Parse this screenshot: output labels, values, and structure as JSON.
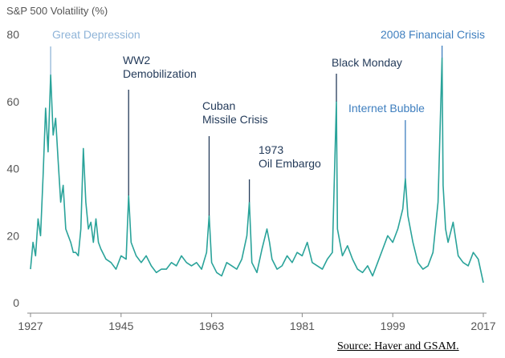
{
  "chart_data": {
    "type": "line",
    "ylabel": "S&P 500 Volatility (%)",
    "xlim": [
      1927,
      2017
    ],
    "ylim": [
      0,
      80
    ],
    "x_ticks": [
      "1927",
      "1945",
      "1963",
      "1981",
      "1999",
      "2017"
    ],
    "y_ticks": [
      "0",
      "20",
      "40",
      "60",
      "80"
    ],
    "grid": false,
    "line_color": "#2AA39A",
    "series": [
      {
        "x": [
          1927,
          1927.5,
          1928,
          1928.5,
          1929,
          1929.5,
          1930,
          1930.5,
          1931,
          1931.5,
          1932,
          1932.5,
          1933,
          1933.5,
          1934,
          1934.5,
          1935,
          1935.5,
          1936,
          1936.5,
          1937,
          1937.5,
          1938,
          1938.5,
          1939,
          1939.5,
          1940,
          1940.5,
          1941,
          1942,
          1943,
          1944,
          1945,
          1946,
          1946.5,
          1947,
          1948,
          1949,
          1950,
          1951,
          1952,
          1953,
          1954,
          1955,
          1956,
          1957,
          1958,
          1959,
          1960,
          1961,
          1962,
          1962.5,
          1963,
          1964,
          1965,
          1966,
          1967,
          1968,
          1969,
          1970,
          1970.5,
          1971,
          1972,
          1973,
          1974,
          1974.5,
          1975,
          1976,
          1977,
          1978,
          1979,
          1980,
          1981,
          1982,
          1983,
          1984,
          1985,
          1986,
          1987,
          1987.8,
          1988,
          1989,
          1990,
          1991,
          1992,
          1993,
          1994,
          1995,
          1996,
          1997,
          1998,
          1999,
          2000,
          2001,
          2001.5,
          2002,
          2003,
          2004,
          2005,
          2006,
          2007,
          2008,
          2008.8,
          2009,
          2009.5,
          2010,
          2011,
          2012,
          2013,
          2014,
          2015,
          2016,
          2017
        ],
        "values": [
          10,
          18,
          14,
          25,
          20,
          38,
          58,
          45,
          68,
          50,
          55,
          42,
          30,
          35,
          22,
          20,
          18,
          15,
          15,
          14,
          22,
          46,
          30,
          22,
          24,
          18,
          25,
          18,
          16,
          13,
          12,
          10,
          14,
          13,
          32,
          18,
          14,
          12,
          14,
          11,
          9,
          10,
          10,
          12,
          11,
          14,
          12,
          11,
          12,
          10,
          15,
          26,
          12,
          9,
          8,
          12,
          11,
          10,
          13,
          20,
          30,
          12,
          9,
          16,
          22,
          18,
          13,
          10,
          11,
          14,
          12,
          15,
          14,
          18,
          12,
          11,
          10,
          13,
          15,
          60,
          22,
          14,
          17,
          13,
          10,
          9,
          11,
          8,
          12,
          16,
          20,
          18,
          22,
          28,
          37,
          26,
          18,
          12,
          10,
          11,
          15,
          30,
          73,
          35,
          22,
          18,
          24,
          14,
          12,
          11,
          15,
          13,
          6
        ]
      }
    ],
    "annotations": [
      {
        "lines": [
          "Great Depression"
        ],
        "x": 1931,
        "y": 68,
        "color": "#8FB4D8"
      },
      {
        "lines": [
          "WW2",
          "Demobilization"
        ],
        "x": 1946.5,
        "y": 32,
        "color": "#243B5A"
      },
      {
        "lines": [
          "Cuban",
          "Missile Crisis"
        ],
        "x": 1962.5,
        "y": 26,
        "color": "#243B5A"
      },
      {
        "lines": [
          "1973",
          "Oil Embargo"
        ],
        "x": 1970.5,
        "y": 30,
        "color": "#243B5A"
      },
      {
        "lines": [
          "Black Monday"
        ],
        "x": 1987.8,
        "y": 60,
        "color": "#243B5A"
      },
      {
        "lines": [
          "Internet Bubble"
        ],
        "x": 2001.5,
        "y": 37,
        "color": "#3F7FBF"
      },
      {
        "lines": [
          "2008 Financial Crisis"
        ],
        "x": 2008.8,
        "y": 73,
        "color": "#3F7FBF"
      }
    ]
  },
  "source_text": "Source: Haver and GSAM."
}
